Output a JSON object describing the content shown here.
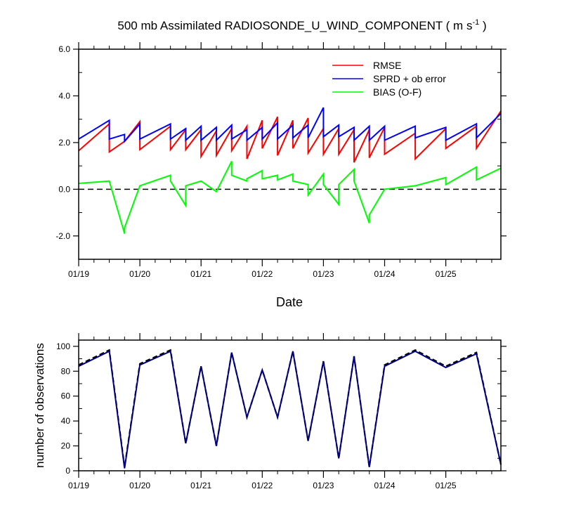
{
  "chart_data": [
    {
      "type": "line",
      "title_main": "500 mb Assimilated RADIOSONDE_U_WIND_COMPONENT ( m s",
      "title_sup": "-1",
      "title_end": " )",
      "xlabel": "Date",
      "ylabel": "",
      "xlim": [
        0,
        6.9
      ],
      "ylim": [
        -3,
        6
      ],
      "yticks": [
        -2,
        0,
        2,
        4,
        6
      ],
      "ytick_labels": [
        "-2.0",
        "0.0",
        "2.0",
        "4.0",
        "6.0"
      ],
      "xticks": [
        0,
        1,
        2,
        3,
        4,
        5,
        6
      ],
      "xtick_labels": [
        "01/19",
        "01/20",
        "01/21",
        "01/22",
        "01/23",
        "01/24",
        "01/25"
      ],
      "reference_line": 0,
      "legend": [
        "RMSE",
        "SPRD + ob error",
        "BIAS (O-F)"
      ],
      "series": [
        {
          "name": "RMSE",
          "color": "#ff0000",
          "x": [
            0,
            0.5,
            0.5,
            0.75,
            0.75,
            1.0,
            1.0,
            1.5,
            1.5,
            1.75,
            1.75,
            2.0,
            2.0,
            2.25,
            2.25,
            2.5,
            2.5,
            2.75,
            2.75,
            3.0,
            3.0,
            3.25,
            3.25,
            3.5,
            3.5,
            3.75,
            3.75,
            4.0,
            4.0,
            4.25,
            4.25,
            4.5,
            4.5,
            4.75,
            4.75,
            5.0,
            5.0,
            5.5,
            5.5,
            6.0,
            6.0,
            6.5,
            6.5,
            6.9
          ],
          "y": [
            1.65,
            2.8,
            1.6,
            2.05,
            2.05,
            2.9,
            1.7,
            2.7,
            1.7,
            2.55,
            1.7,
            2.55,
            1.4,
            2.5,
            1.45,
            2.6,
            1.65,
            2.7,
            1.3,
            2.95,
            1.75,
            3.1,
            1.45,
            2.95,
            1.75,
            3.05,
            1.55,
            2.6,
            1.5,
            2.6,
            1.5,
            2.55,
            1.15,
            2.55,
            1.35,
            2.65,
            1.5,
            2.4,
            1.3,
            2.6,
            1.75,
            2.7,
            1.75,
            3.35
          ]
        },
        {
          "name": "SPRD + ob error",
          "color": "#0000ff",
          "x": [
            0,
            0.5,
            0.5,
            0.75,
            0.75,
            1.0,
            1.0,
            1.5,
            1.5,
            1.75,
            1.75,
            2.0,
            2.0,
            2.25,
            2.25,
            2.5,
            2.5,
            2.75,
            2.75,
            3.0,
            3.0,
            3.25,
            3.25,
            3.5,
            3.5,
            3.75,
            3.75,
            4.0,
            4.0,
            4.25,
            4.25,
            4.5,
            4.5,
            4.75,
            4.75,
            5.0,
            5.0,
            5.5,
            5.5,
            6.0,
            6.0,
            6.5,
            6.5,
            6.9
          ],
          "y": [
            2.15,
            2.95,
            2.15,
            2.35,
            2.05,
            2.8,
            2.15,
            2.8,
            2.15,
            2.6,
            2.1,
            2.7,
            2.1,
            2.65,
            2.1,
            2.75,
            2.15,
            2.55,
            2.1,
            2.65,
            2.15,
            2.85,
            2.15,
            2.75,
            2.2,
            2.75,
            2.2,
            3.5,
            2.25,
            2.75,
            2.25,
            2.65,
            2.1,
            2.7,
            2.1,
            2.7,
            2.1,
            2.7,
            2.2,
            2.65,
            2.1,
            2.8,
            2.2,
            3.25
          ]
        },
        {
          "name": "BIAS (O-F)",
          "color": "#00ff00",
          "x": [
            0,
            0.5,
            0.75,
            0.75,
            1.0,
            1.5,
            1.5,
            1.75,
            1.75,
            2.0,
            2.25,
            2.5,
            2.5,
            2.75,
            2.75,
            3.0,
            3.0,
            3.25,
            3.25,
            3.5,
            3.5,
            3.75,
            3.75,
            4.0,
            4.0,
            4.25,
            4.25,
            4.5,
            4.5,
            4.75,
            4.75,
            5.0,
            5.5,
            6.0,
            6.0,
            6.5,
            6.5,
            6.9
          ],
          "y": [
            0.25,
            0.35,
            -1.9,
            -1.65,
            0.15,
            0.6,
            0.35,
            -0.7,
            0.15,
            0.35,
            -0.1,
            1.2,
            0.6,
            0.35,
            0.45,
            0.8,
            0.45,
            0.6,
            0.4,
            0.65,
            0.35,
            0.2,
            -0.25,
            0.65,
            0.2,
            -0.65,
            0.2,
            0.85,
            0.35,
            -1.45,
            -1.1,
            0.0,
            0.15,
            0.5,
            0.2,
            0.95,
            0.4,
            0.9
          ]
        }
      ]
    },
    {
      "type": "line",
      "title": "",
      "xlabel": "",
      "ylabel": "number of observations",
      "xlim": [
        0,
        6.9
      ],
      "ylim": [
        0,
        105
      ],
      "yticks": [
        0,
        20,
        40,
        60,
        80,
        100
      ],
      "ytick_labels": [
        "0",
        "20",
        "40",
        "60",
        "80",
        "100"
      ],
      "xticks": [
        0,
        1,
        2,
        3,
        4,
        5,
        6
      ],
      "xtick_labels": [
        "01/19",
        "01/20",
        "01/21",
        "01/22",
        "01/23",
        "01/24",
        "01/25"
      ],
      "series": [
        {
          "name": "observations (dashed)",
          "color": "#000000",
          "dashed": true,
          "x": [
            0,
            0.5,
            0.75,
            1.0,
            1.5,
            1.75,
            2.0,
            2.25,
            2.5,
            2.75,
            3.0,
            3.25,
            3.5,
            3.75,
            4.0,
            4.25,
            4.5,
            4.75,
            5.0,
            5.5,
            6.0,
            6.5,
            6.9
          ],
          "y": [
            85,
            97,
            3,
            86,
            97,
            22,
            84,
            20,
            95,
            43,
            81,
            43,
            96,
            24,
            88,
            10,
            92,
            3,
            85,
            97,
            84,
            95,
            5
          ]
        },
        {
          "name": "observations",
          "color": "#000080",
          "dashed": false,
          "x": [
            0,
            0.5,
            0.75,
            1.0,
            1.5,
            1.75,
            2.0,
            2.25,
            2.5,
            2.75,
            3.0,
            3.25,
            3.5,
            3.75,
            4.0,
            4.25,
            4.5,
            4.75,
            5.0,
            5.5,
            6.0,
            6.5,
            6.9
          ],
          "y": [
            84,
            96,
            2,
            85,
            96,
            22,
            84,
            20,
            95,
            43,
            81,
            43,
            96,
            24,
            88,
            10,
            92,
            3,
            84,
            96,
            83,
            94,
            5
          ]
        }
      ]
    }
  ]
}
